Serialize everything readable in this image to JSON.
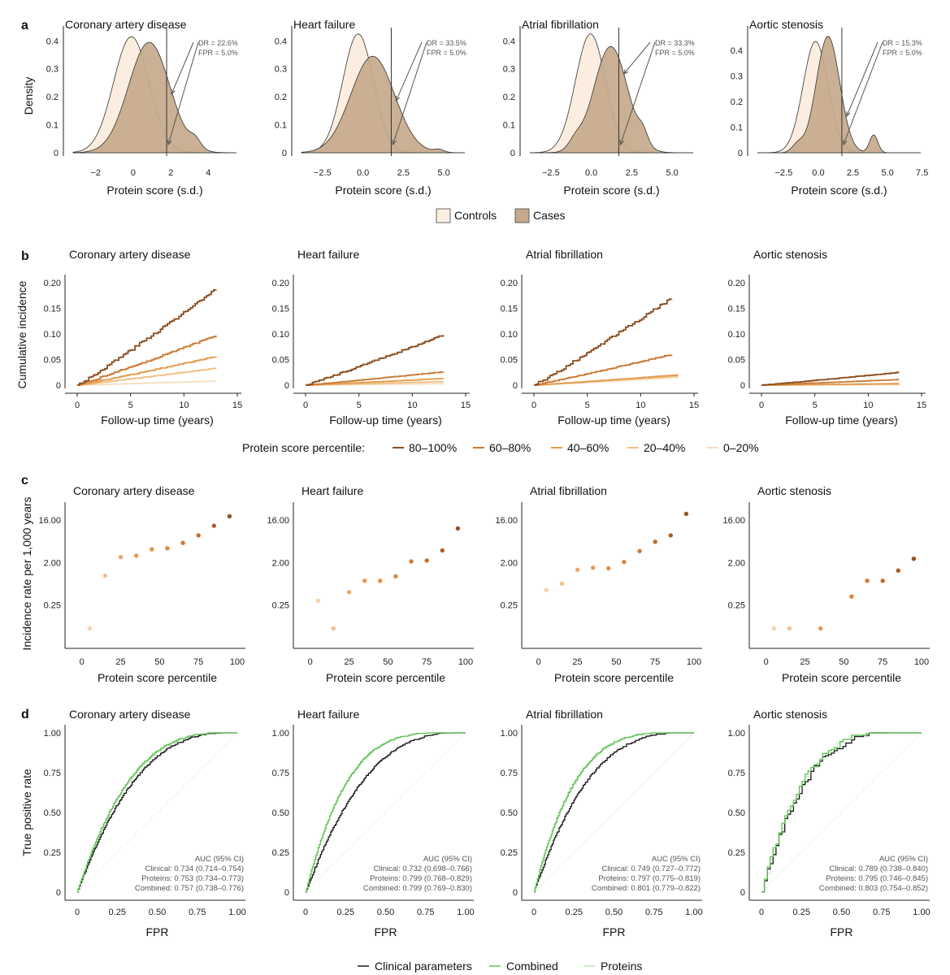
{
  "panel_letters": [
    "a",
    "b",
    "c",
    "d"
  ],
  "diseases": [
    "Coronary artery disease",
    "Heart failure",
    "Atrial fibrillation",
    "Aortic stenosis"
  ],
  "colors": {
    "controls": "#fbeee0",
    "cases": "#c6a98b",
    "q1": "#8a4d1f",
    "q2": "#c97a34",
    "q3": "#e29b4e",
    "q4": "#f0bf83",
    "q5": "#f7dcbd",
    "clinical": "#1a1a1a",
    "combined": "#5cc24f",
    "proteins": "#bfe3ba"
  },
  "legend_a": {
    "controls": "Controls",
    "cases": "Cases"
  },
  "legend_b": {
    "title": "Protein score percentile:",
    "items": [
      "80–100%",
      "60–80%",
      "40–60%",
      "20–40%",
      "0–20%"
    ]
  },
  "legend_d": {
    "items": [
      "Clinical parameters",
      "Combined",
      "Proteins"
    ]
  },
  "chart_data": [
    {
      "panel": "a",
      "type": "area",
      "xlabel": "Protein score (s.d.)",
      "ylabel": "Density",
      "yticks": [
        0,
        0.1,
        0.2,
        0.3,
        0.4
      ],
      "ytick_labels": [
        "0",
        "0.1",
        "0.2",
        "0.3",
        "0.4"
      ],
      "series_names": [
        "Controls",
        "Cases"
      ],
      "subplots": [
        {
          "title": "Coronary artery disease",
          "xlim": [
            -3.2,
            5.5
          ],
          "ylim": [
            0,
            0.43
          ],
          "xticks": [
            -2,
            0,
            2,
            4
          ],
          "xtick_labels": [
            "−2",
            "0",
            "2",
            "4"
          ],
          "threshold": 1.78,
          "dr_label": "DR = 22.6%",
          "fpr_label": "FPR = 5.0%",
          "controls": {
            "mean": -0.1,
            "sd": 0.95,
            "peak": 0.415
          },
          "cases": {
            "mean": 0.85,
            "sd": 1.1,
            "peak": 0.395,
            "bumps": [
              [
                3.3,
                0.3,
                0.03
              ]
            ]
          }
        },
        {
          "title": "Heart failure",
          "xlim": [
            -3.8,
            6.3
          ],
          "ylim": [
            0,
            0.43
          ],
          "xticks": [
            -2.5,
            0,
            2.5,
            5
          ],
          "xtick_labels": [
            "−2.5",
            "0.0",
            "2.5",
            "5.0"
          ],
          "threshold": 1.75,
          "dr_label": "DR = 33.5%",
          "fpr_label": "FPR = 5.0%",
          "controls": {
            "mean": -0.3,
            "sd": 0.95,
            "peak": 0.425
          },
          "cases": {
            "mean": 0.6,
            "sd": 1.35,
            "peak": 0.345,
            "bumps": [
              [
                4.7,
                0.3,
                0.01
              ]
            ]
          }
        },
        {
          "title": "Atrial fibrillation",
          "xlim": [
            -3.8,
            6.3
          ],
          "ylim": [
            0,
            0.43
          ],
          "xticks": [
            -2.5,
            0,
            2.5,
            5
          ],
          "xtick_labels": [
            "−2.5",
            "0.0",
            "2.5",
            "5.0"
          ],
          "threshold": 1.7,
          "dr_label": "DR = 33.3%",
          "fpr_label": "FPR = 5.0%",
          "controls": {
            "mean": -0.05,
            "sd": 0.93,
            "peak": 0.425
          },
          "cases": {
            "mean": 1.2,
            "sd": 1.05,
            "peak": 0.38,
            "bumps": [
              [
                3.2,
                0.3,
                0.04
              ],
              [
                -1.0,
                0.4,
                0.03
              ]
            ]
          }
        },
        {
          "title": "Aortic stenosis",
          "xlim": [
            -4.4,
            7.4
          ],
          "ylim": [
            0,
            0.47
          ],
          "xticks": [
            -2.5,
            0,
            2.5,
            5,
            7.5
          ],
          "xtick_labels": [
            "−2.5",
            "0.0",
            "2.5",
            "5.0",
            "7.5"
          ],
          "threshold": 1.7,
          "dr_label": "DR = 15.3%",
          "fpr_label": "FPR = 5.0%",
          "controls": {
            "mean": -0.2,
            "sd": 0.9,
            "peak": 0.435
          },
          "cases": {
            "mean": 0.7,
            "sd": 0.85,
            "peak": 0.455,
            "bumps": [
              [
                4.0,
                0.3,
                0.07
              ],
              [
                -1.5,
                0.4,
                0.03
              ]
            ]
          }
        }
      ]
    },
    {
      "panel": "b",
      "type": "line",
      "xlabel": "Follow-up time (years)",
      "ylabel": "Cumulative incidence",
      "xlim": [
        0,
        15
      ],
      "ylim": [
        0,
        0.2
      ],
      "xticks": [
        0,
        5,
        10,
        15
      ],
      "xtick_labels": [
        "0",
        "5",
        "10",
        "15"
      ],
      "yticks": [
        0,
        0.05,
        0.1,
        0.15,
        0.2
      ],
      "ytick_labels": [
        "0",
        "0.05",
        "0.10",
        "0.15",
        "0.20"
      ],
      "series_names": [
        "80–100%",
        "60–80%",
        "40–60%",
        "20–40%",
        "0–20%"
      ],
      "subplots": [
        {
          "title": "Coronary artery disease",
          "final_values": [
            0.187,
            0.097,
            0.056,
            0.033,
            0.008
          ],
          "end_years": [
            13,
            13,
            13,
            13,
            13
          ]
        },
        {
          "title": "Heart failure",
          "final_values": [
            0.098,
            0.026,
            0.013,
            0.007,
            0.003
          ],
          "end_years": [
            12.9,
            12.9,
            12.9,
            12.9,
            12.9
          ]
        },
        {
          "title": "Atrial fibrillation",
          "final_values": [
            0.17,
            0.06,
            0.02,
            0.018,
            0.015
          ],
          "end_years": [
            12.9,
            12.9,
            13.5,
            13.5,
            13.5
          ]
        },
        {
          "title": "Aortic stenosis",
          "final_values": [
            0.025,
            0.011,
            0.003,
            0.002,
            0.001
          ],
          "end_years": [
            12.9,
            12.9,
            12.9,
            12.9,
            12.9
          ]
        }
      ]
    },
    {
      "panel": "c",
      "type": "scatter",
      "xlabel": "Protein score percentile",
      "ylabel": "Incidence rate per 1,000 years",
      "xlim": [
        -3,
        100
      ],
      "yscale": "log2",
      "ylim": [
        0.045,
        38
      ],
      "xticks": [
        0,
        25,
        50,
        75,
        100
      ],
      "xtick_labels": [
        "0",
        "25",
        "50",
        "75",
        "100"
      ],
      "yticks": [
        0.25,
        2,
        16
      ],
      "ytick_labels": [
        "0.25",
        "2.00",
        "16.00"
      ],
      "x": [
        5,
        15,
        25,
        35,
        45,
        55,
        65,
        75,
        85,
        95
      ],
      "subplots": [
        {
          "title": "Coronary artery disease",
          "values": [
            0.08,
            1.05,
            2.6,
            2.8,
            3.8,
            4.0,
            5.2,
            7.5,
            12.0,
            19.0
          ]
        },
        {
          "title": "Heart failure",
          "values": [
            0.31,
            0.08,
            0.47,
            0.82,
            0.82,
            1.02,
            2.1,
            2.2,
            3.6,
            10.5
          ]
        },
        {
          "title": "Atrial fibrillation",
          "values": [
            0.52,
            0.72,
            1.4,
            1.55,
            1.5,
            2.05,
            3.5,
            5.5,
            7.5,
            21.5
          ]
        },
        {
          "title": "Aortic stenosis",
          "values": [
            0.08,
            0.08,
            null,
            0.08,
            null,
            0.38,
            0.82,
            0.82,
            1.35,
            2.4
          ]
        }
      ]
    },
    {
      "panel": "d",
      "type": "line",
      "xlabel": "FPR",
      "ylabel": "True positive rate",
      "xlim": [
        0,
        1
      ],
      "ylim": [
        0,
        1
      ],
      "xticks": [
        0,
        0.25,
        0.5,
        0.75,
        1
      ],
      "xtick_labels": [
        "0",
        "0.25",
        "0.50",
        "0.75",
        "1.00"
      ],
      "yticks": [
        0,
        0.25,
        0.5,
        0.75,
        1
      ],
      "ytick_labels": [
        "0",
        "0.25",
        "0.50",
        "0.75",
        "1.00"
      ],
      "series_names": [
        "Clinical parameters",
        "Combined",
        "Proteins"
      ],
      "subplots": [
        {
          "title": "Coronary artery disease",
          "auc": [
            0.734,
            0.757,
            0.753
          ],
          "auc_lines": [
            "AUC (95% CI)",
            "Clinical: 0.734 (0.714–0.754)",
            "Proteins: 0.753 (0.734–0.773)",
            "Combined: 0.757 (0.738–0.776)"
          ]
        },
        {
          "title": "Heart failure",
          "auc": [
            0.732,
            0.799,
            0.799
          ],
          "auc_lines": [
            "AUC (95% CI)",
            "Clinical: 0.732 (0.698–0.766)",
            "Proteins: 0.799 (0.768–0.829)",
            "Combined: 0.799 (0.769–0.830)"
          ]
        },
        {
          "title": "Atrial fibrillation",
          "auc": [
            0.749,
            0.801,
            0.797
          ],
          "auc_lines": [
            "AUC (95% CI)",
            "Clinical: 0.749 (0.727–0.772)",
            "Proteins: 0.797 (0.775–0.819)",
            "Combined: 0.801 (0.779–0.822)"
          ]
        },
        {
          "title": "Aortic stenosis",
          "auc": [
            0.789,
            0.803,
            0.795
          ],
          "auc_lines": [
            "AUC (95% CI)",
            "Clinical: 0.789 (0.738–0.840)",
            "Proteins: 0.795 (0.746–0.845)",
            "Combined: 0.803 (0.754–0.852)"
          ]
        }
      ]
    }
  ]
}
